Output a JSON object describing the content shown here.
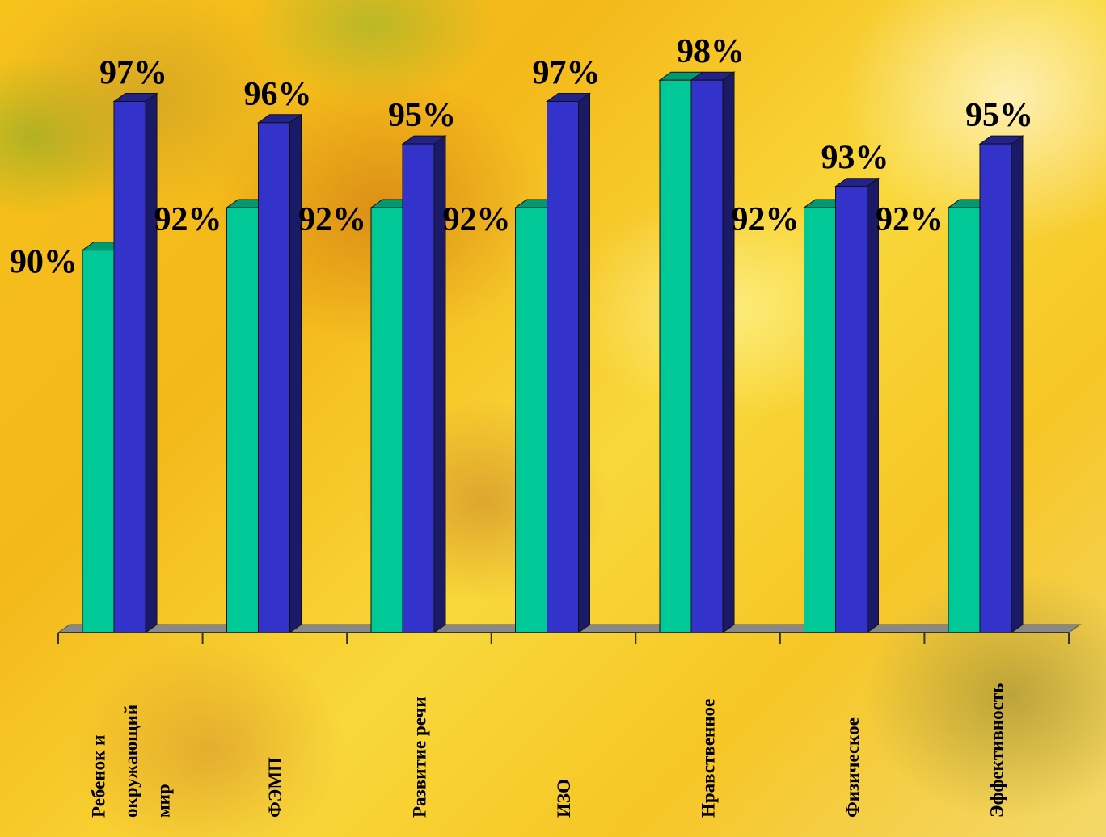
{
  "chart_data": {
    "type": "bar",
    "title": "",
    "xlabel": "",
    "ylabel": "",
    "categories": [
      [
        "Ребенок и",
        "окружающий",
        "мир"
      ],
      [
        "ФЭМП"
      ],
      [
        "Развитие речи"
      ],
      [
        "ИЗО"
      ],
      [
        "Нравственное"
      ],
      [
        "Физическое"
      ],
      [
        "Эффективность"
      ]
    ],
    "ylim": [
      0,
      100
    ],
    "axis_min": 72,
    "series": [
      {
        "color": "#00c896",
        "values": [
          90,
          92,
          92,
          92,
          98,
          92,
          92
        ],
        "labels": [
          "90%",
          "92%",
          "92%",
          "92%",
          "",
          "92%",
          "92%"
        ]
      },
      {
        "color": "#3333cc",
        "values": [
          97,
          96,
          95,
          97,
          98,
          93,
          95
        ],
        "labels": [
          "97%",
          "96%",
          "95%",
          "97%",
          "98%",
          "93%",
          "95%"
        ]
      }
    ],
    "grid": false,
    "legend": "none",
    "style": "3d-columns"
  },
  "colors": {
    "series1_front": "#00c896",
    "series1_side": "#007a5a",
    "series1_top": "#009a72",
    "series2_front": "#3333cc",
    "series2_side": "#1a1a66",
    "series2_top": "#22228a",
    "floor": "#888888",
    "axis": "#333333"
  }
}
